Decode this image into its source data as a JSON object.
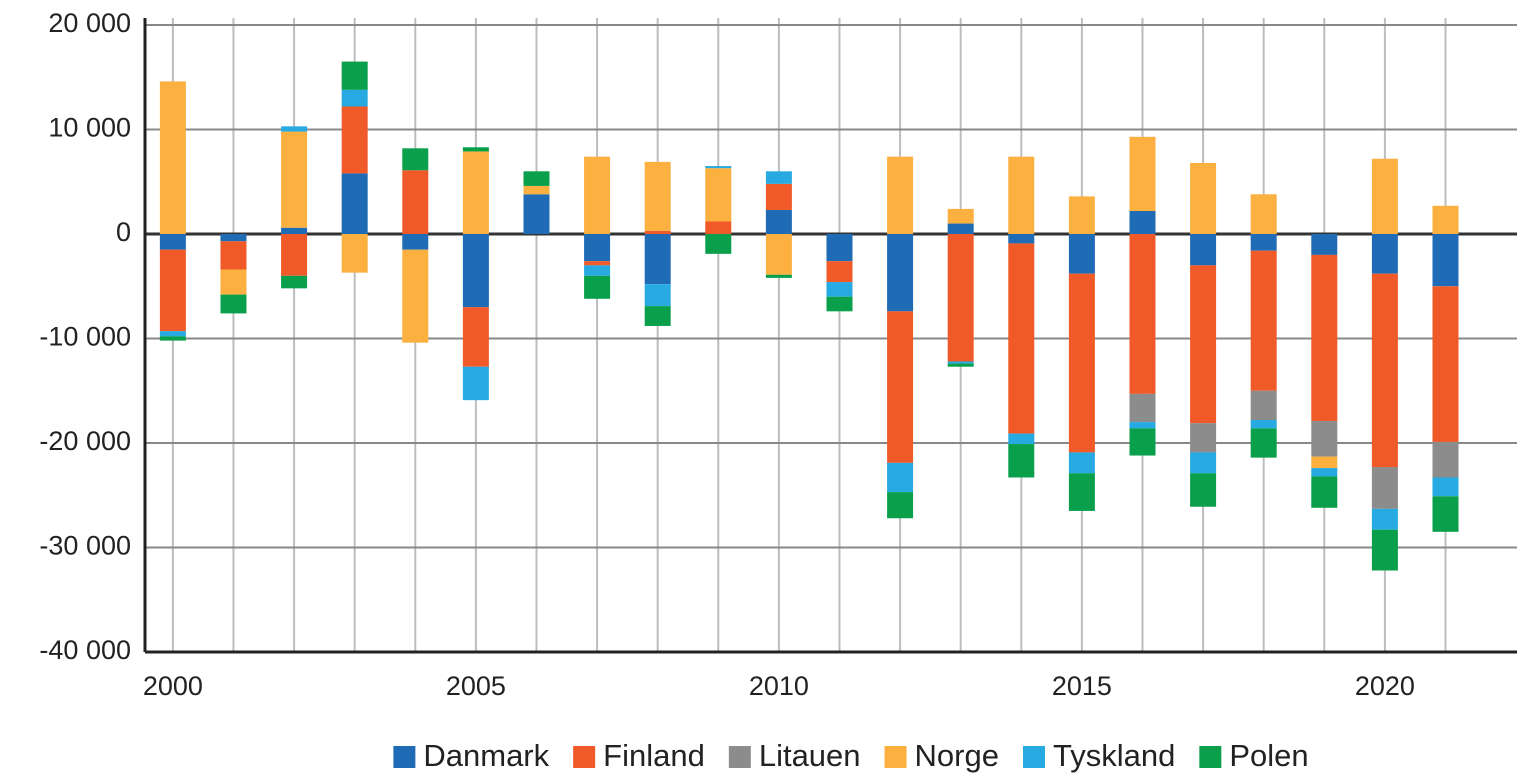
{
  "chart_data": {
    "type": "stacked_bar",
    "x": [
      2000,
      2001,
      2002,
      2003,
      2004,
      2005,
      2006,
      2007,
      2008,
      2009,
      2010,
      2011,
      2012,
      2013,
      2014,
      2015,
      2016,
      2017,
      2018,
      2019,
      2020,
      2021
    ],
    "series": [
      {
        "name": "Danmark",
        "color": "#1f6bb5",
        "values": [
          -1500,
          -700,
          600,
          5800,
          -1500,
          -7000,
          3800,
          -2600,
          -4800,
          0,
          2300,
          -2600,
          -7400,
          1000,
          -900,
          -3800,
          2200,
          -3000,
          -1600,
          -2000,
          -3800,
          -5000
        ]
      },
      {
        "name": "Finland",
        "color": "#f05a28",
        "values": [
          -7800,
          -2700,
          -4000,
          6400,
          6100,
          -5700,
          0,
          -400,
          300,
          1200,
          2500,
          -2000,
          -14500,
          -12200,
          -18200,
          -17100,
          -15300,
          -15100,
          -13400,
          -15900,
          -18500,
          -14900
        ]
      },
      {
        "name": "Litauen",
        "color": "#8c8c8c",
        "values": [
          0,
          0,
          0,
          0,
          0,
          0,
          0,
          0,
          0,
          0,
          0,
          0,
          0,
          0,
          0,
          0,
          -2700,
          -2800,
          -2800,
          -3400,
          -4000,
          -3400
        ]
      },
      {
        "name": "Norge",
        "color": "#fbb040",
        "values": [
          14600,
          -2400,
          9200,
          -3700,
          -8900,
          7900,
          800,
          7400,
          6600,
          5100,
          -3900,
          0,
          7400,
          1400,
          7400,
          3600,
          7100,
          6800,
          3800,
          -1100,
          7200,
          2700
        ]
      },
      {
        "name": "Tyskland",
        "color": "#27aae1",
        "values": [
          -500,
          0,
          500,
          1600,
          0,
          -3200,
          0,
          -1000,
          -2100,
          200,
          1200,
          -1400,
          -2800,
          -200,
          -1000,
          -2000,
          -600,
          -2000,
          -800,
          -800,
          -2000,
          -1800
        ]
      },
      {
        "name": "Polen",
        "color": "#0aa04b",
        "values": [
          -400,
          -1800,
          -1200,
          2700,
          2100,
          400,
          1400,
          -2200,
          -1900,
          -1900,
          -300,
          -1400,
          -2500,
          -300,
          -3200,
          -3600,
          -2600,
          -3200,
          -2800,
          -3000,
          -3900,
          -3400
        ]
      }
    ],
    "xlim": [
      1999.54,
      2022.18
    ],
    "xticks": [
      2000,
      2005,
      2010,
      2015,
      2020
    ],
    "ylim": [
      -40000,
      20000
    ],
    "yticks": [
      {
        "value": -40000,
        "label": "-40 000"
      },
      {
        "value": -30000,
        "label": "-30 000"
      },
      {
        "value": -20000,
        "label": "-20 000"
      },
      {
        "value": -10000,
        "label": "-10 000"
      },
      0,
      {
        "value": 10000,
        "label": "10 000"
      },
      {
        "value": 20000,
        "label": "20 000"
      }
    ],
    "grid": true,
    "legend": "bottom"
  }
}
